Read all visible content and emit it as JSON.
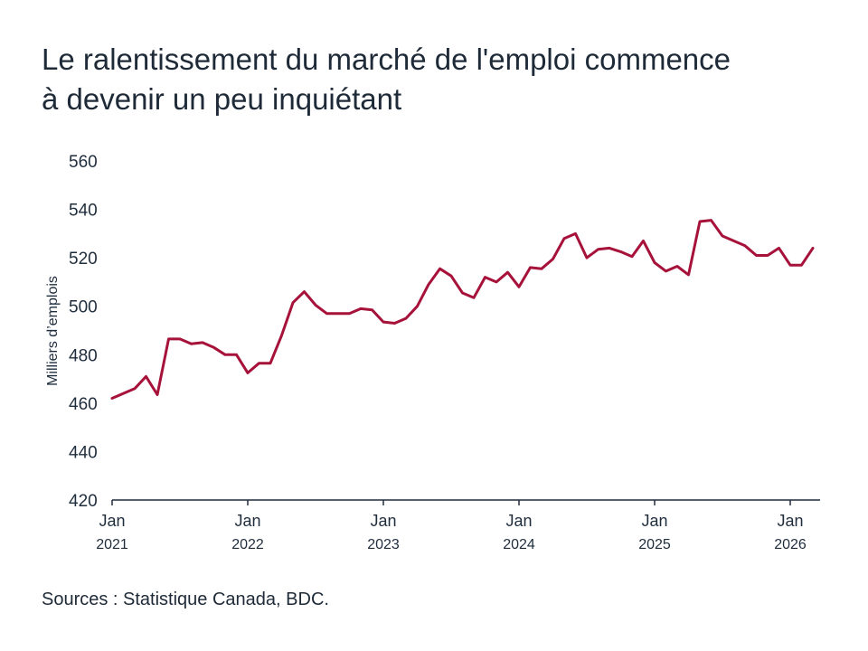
{
  "title": {
    "line1": "Le ralentissement du marché de l'emploi commence",
    "line2": "à devenir un peu inquiétant"
  },
  "source": "Sources : Statistique Canada, BDC.",
  "colors": {
    "line": "#a6123a",
    "axis": "#1f2d3d",
    "text": "#1e2a38"
  },
  "chart_data": {
    "type": "line",
    "title": "Le ralentissement du marché de l'emploi commence à devenir un peu inquiétant",
    "xlabel": "",
    "ylabel": "Milliers d’emplois",
    "ylim": [
      420,
      560
    ],
    "yticks": [
      420,
      440,
      460,
      480,
      500,
      520,
      540,
      560
    ],
    "grid": false,
    "x_start": "2021-01",
    "x_ticks": [
      {
        "index": 0,
        "month": "Jan",
        "year": "2021"
      },
      {
        "index": 12,
        "month": "Jan",
        "year": "2022"
      },
      {
        "index": 24,
        "month": "Jan",
        "year": "2023"
      },
      {
        "index": 36,
        "month": "Jan",
        "year": "2024"
      },
      {
        "index": 48,
        "month": "Jan",
        "year": "2025"
      },
      {
        "index": 60,
        "month": "Jan",
        "year": "2026"
      }
    ],
    "series": [
      {
        "name": "Milliers d’emplois",
        "values": [
          462,
          464,
          466,
          471,
          463.5,
          486.5,
          486.5,
          484.5,
          485,
          483,
          480,
          480,
          472.5,
          476.5,
          476.5,
          488,
          501.5,
          506,
          500.5,
          497,
          497,
          497,
          499,
          498.5,
          493.5,
          493,
          495,
          500,
          509,
          515.5,
          512.5,
          505.5,
          503.5,
          512,
          510,
          514,
          508,
          516,
          515.5,
          519.5,
          528,
          530,
          520,
          523.5,
          524,
          522.5,
          520.5,
          527,
          518,
          514.5,
          516.5,
          513,
          535,
          535.5,
          529,
          527,
          525,
          521,
          521,
          524,
          517,
          517,
          524
        ]
      }
    ]
  }
}
